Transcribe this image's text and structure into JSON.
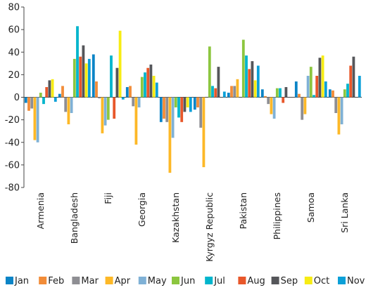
{
  "chart_data": {
    "type": "bar",
    "title": "",
    "xlabel": "",
    "ylabel": "",
    "ylim": [
      -80,
      80
    ],
    "yticks": [
      -80,
      -60,
      -40,
      -20,
      0,
      20,
      40,
      60,
      80
    ],
    "grid": false,
    "legend_position": "bottom",
    "categories": [
      "Armenia",
      "Bangladesh",
      "Fiji",
      "Georgia",
      "Kazakhstan",
      "Kyrgyz Republic",
      "Pakistan",
      "Philippines",
      "Samoa",
      "Sri Lanka"
    ],
    "series": [
      {
        "name": "Jan",
        "color": "#0b84c6",
        "values": [
          -5,
          3,
          38,
          9,
          -22,
          -11,
          4,
          7,
          14,
          7
        ]
      },
      {
        "name": "Feb",
        "color": "#f28c38",
        "values": [
          -12,
          10,
          14,
          10,
          -19,
          -9,
          10,
          1,
          3,
          6
        ]
      },
      {
        "name": "Mar",
        "color": "#8e8e93",
        "values": [
          -10,
          -13,
          -1,
          -8,
          -22,
          -27,
          10,
          -6,
          -20,
          -14
        ]
      },
      {
        "name": "Apr",
        "color": "#fdb827",
        "values": [
          -38,
          -24,
          -32,
          -42,
          -67,
          -62,
          16,
          -15,
          -15,
          -33
        ]
      },
      {
        "name": "May",
        "color": "#7fb1d6",
        "values": [
          -40,
          -14,
          -25,
          -9,
          -36,
          0,
          0,
          -19,
          19,
          -24
        ]
      },
      {
        "name": "Jun",
        "color": "#8cc63f",
        "values": [
          4,
          34,
          -20,
          18,
          -9,
          45,
          51,
          8,
          27,
          7
        ]
      },
      {
        "name": "Jul",
        "color": "#00b5cc",
        "values": [
          -6,
          63,
          37,
          22,
          -18,
          10,
          37,
          8,
          2,
          12
        ]
      },
      {
        "name": "Aug",
        "color": "#e8572a",
        "values": [
          9,
          36,
          -19,
          26,
          -22,
          8,
          25,
          -5,
          19,
          28
        ]
      },
      {
        "name": "Sep",
        "color": "#55565a",
        "values": [
          15,
          46,
          26,
          29,
          -13,
          27,
          32,
          9,
          35,
          36
        ]
      },
      {
        "name": "Oct",
        "color": "#f7ec13",
        "values": [
          16,
          30,
          59,
          19,
          -9,
          0,
          15,
          0,
          37,
          0
        ]
      },
      {
        "name": "Nov",
        "color": "#0ba0d8",
        "values": [
          -4,
          34,
          -2,
          13,
          -13,
          5,
          28,
          0,
          14,
          19
        ]
      }
    ]
  }
}
